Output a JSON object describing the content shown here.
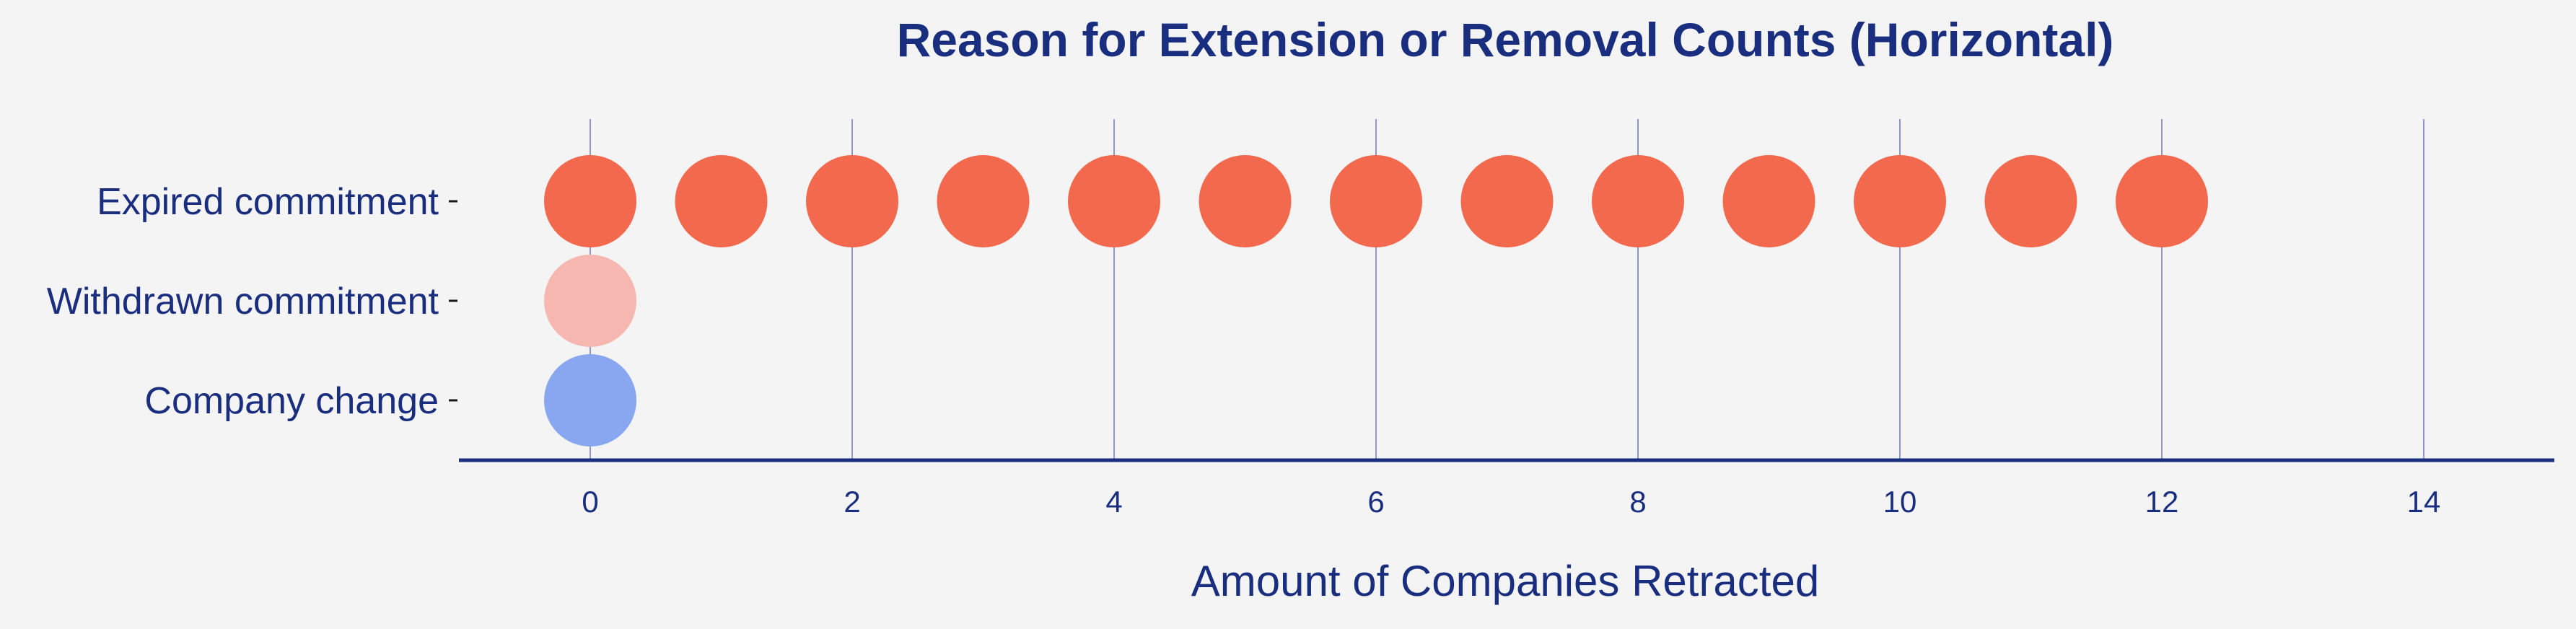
{
  "colors": {
    "background": "#f4f4f4",
    "text": "#1a2e80",
    "axis": "#1a2e80",
    "grid": "#8f96c4"
  },
  "chart_data": {
    "type": "scatter",
    "title": "Reason for Extension or Removal Counts (Horizontal)",
    "xlabel": "Amount of Companies Retracted",
    "ylabel": "",
    "xlim": [
      -1,
      15
    ],
    "xticks": [
      0,
      2,
      4,
      6,
      8,
      10,
      12,
      14
    ],
    "grid": "vertical",
    "categories": [
      "Expired commitment",
      "Withdrawn commitment",
      "Company change"
    ],
    "series": [
      {
        "category": "Expired commitment",
        "color": "#f2694d",
        "x": [
          0,
          1,
          2,
          3,
          4,
          5,
          6,
          7,
          8,
          9,
          10,
          11,
          12
        ]
      },
      {
        "category": "Withdrawn commitment",
        "color": "#f5b7b0",
        "x": [
          0
        ]
      },
      {
        "category": "Company change",
        "color": "#88a7f0",
        "x": [
          0
        ]
      }
    ]
  }
}
